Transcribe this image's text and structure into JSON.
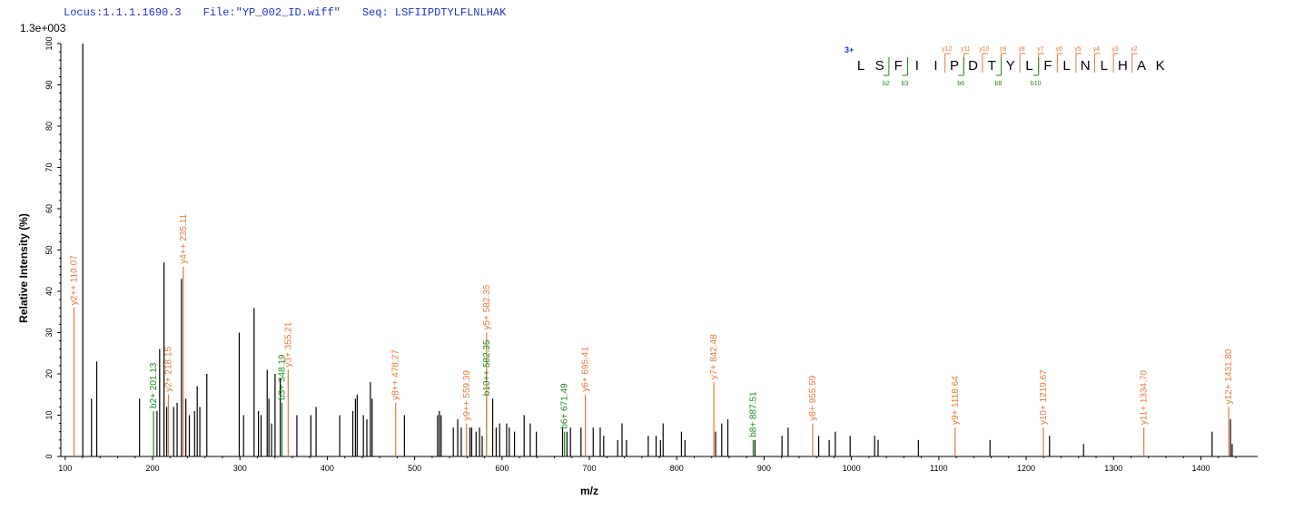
{
  "header": {
    "locus": "Locus:1.1.1.1690.3",
    "file": "File:\"YP_002_ID.wiff\"",
    "seq": "Seq: LSFIIPDTYLFLNLHAK"
  },
  "colors": {
    "y_ion": "#e8783a",
    "b_ion": "#1f8a1f",
    "unlabeled": "#000000",
    "header": "#1a35c8",
    "charge": "#1a35c8"
  },
  "chart_data": {
    "type": "bar",
    "title": "",
    "xlabel": "m/z",
    "ylabel": "Relative Intensity (%)",
    "ymax_label": "1.3e+003",
    "xlim": [
      95,
      1465
    ],
    "ylim": [
      0,
      100
    ],
    "xticks": [
      100,
      200,
      300,
      400,
      500,
      600,
      700,
      800,
      900,
      1000,
      1100,
      1200,
      1300,
      1400
    ],
    "yticks": [
      0,
      10,
      20,
      30,
      40,
      50,
      60,
      70,
      80,
      90,
      100
    ],
    "peaks": [
      {
        "mz": 110.07,
        "i": 36,
        "ion": "y",
        "label": "y2++ 110.07"
      },
      {
        "mz": 120.1,
        "i": 100,
        "ion": "none"
      },
      {
        "mz": 130.1,
        "i": 14,
        "ion": "none"
      },
      {
        "mz": 136.1,
        "i": 23,
        "ion": "none"
      },
      {
        "mz": 185.1,
        "i": 14,
        "ion": "none"
      },
      {
        "mz": 201.13,
        "i": 11,
        "ion": "b",
        "label": "b2+ 201.13"
      },
      {
        "mz": 205.1,
        "i": 11,
        "ion": "none"
      },
      {
        "mz": 208.1,
        "i": 26,
        "ion": "none"
      },
      {
        "mz": 213.1,
        "i": 47,
        "ion": "none"
      },
      {
        "mz": 216.2,
        "i": 12,
        "ion": "none"
      },
      {
        "mz": 218.15,
        "i": 15,
        "ion": "y",
        "label": "y2+ 218.15"
      },
      {
        "mz": 224.1,
        "i": 12,
        "ion": "none"
      },
      {
        "mz": 228.1,
        "i": 13,
        "ion": "none"
      },
      {
        "mz": 233.1,
        "i": 43,
        "ion": "none"
      },
      {
        "mz": 235.11,
        "i": 46,
        "ion": "y",
        "label": "y4++ 235.11"
      },
      {
        "mz": 238.1,
        "i": 14,
        "ion": "none"
      },
      {
        "mz": 242.1,
        "i": 10,
        "ion": "none"
      },
      {
        "mz": 248.1,
        "i": 11,
        "ion": "none"
      },
      {
        "mz": 251.1,
        "i": 17,
        "ion": "none"
      },
      {
        "mz": 254.1,
        "i": 12,
        "ion": "none"
      },
      {
        "mz": 262.1,
        "i": 20,
        "ion": "none"
      },
      {
        "mz": 299.2,
        "i": 30,
        "ion": "none"
      },
      {
        "mz": 304.2,
        "i": 10,
        "ion": "none"
      },
      {
        "mz": 316.2,
        "i": 36,
        "ion": "none"
      },
      {
        "mz": 321.2,
        "i": 11,
        "ion": "none"
      },
      {
        "mz": 324.2,
        "i": 10,
        "ion": "none"
      },
      {
        "mz": 331.2,
        "i": 21,
        "ion": "none"
      },
      {
        "mz": 333.2,
        "i": 14,
        "ion": "none"
      },
      {
        "mz": 336.2,
        "i": 8,
        "ion": "none"
      },
      {
        "mz": 340.2,
        "i": 20,
        "ion": "none"
      },
      {
        "mz": 346.2,
        "i": 19,
        "ion": "none"
      },
      {
        "mz": 348.19,
        "i": 13,
        "ion": "b",
        "label": "b3+ 348.19"
      },
      {
        "mz": 355.21,
        "i": 21,
        "ion": "y",
        "label": "y3+ 355.21"
      },
      {
        "mz": 365.2,
        "i": 10,
        "ion": "none"
      },
      {
        "mz": 381.2,
        "i": 10,
        "ion": "none"
      },
      {
        "mz": 387.2,
        "i": 12,
        "ion": "none"
      },
      {
        "mz": 414.2,
        "i": 10,
        "ion": "none"
      },
      {
        "mz": 429.2,
        "i": 11,
        "ion": "none"
      },
      {
        "mz": 432.2,
        "i": 14,
        "ion": "none"
      },
      {
        "mz": 434.2,
        "i": 15,
        "ion": "none"
      },
      {
        "mz": 441.3,
        "i": 10,
        "ion": "none"
      },
      {
        "mz": 445.3,
        "i": 9,
        "ion": "none"
      },
      {
        "mz": 449.3,
        "i": 18,
        "ion": "none"
      },
      {
        "mz": 451.3,
        "i": 14,
        "ion": "none"
      },
      {
        "mz": 478.27,
        "i": 13,
        "ion": "y",
        "label": "y8++ 478.27"
      },
      {
        "mz": 488.3,
        "i": 10,
        "ion": "none"
      },
      {
        "mz": 526.3,
        "i": 10,
        "ion": "none"
      },
      {
        "mz": 528.3,
        "i": 11,
        "ion": "none"
      },
      {
        "mz": 530.3,
        "i": 10,
        "ion": "none"
      },
      {
        "mz": 544.3,
        "i": 7,
        "ion": "none"
      },
      {
        "mz": 549.3,
        "i": 9,
        "ion": "none"
      },
      {
        "mz": 553.3,
        "i": 7,
        "ion": "none"
      },
      {
        "mz": 559.39,
        "i": 8,
        "ion": "y",
        "label": "y9++ 559.39"
      },
      {
        "mz": 563.3,
        "i": 7,
        "ion": "none"
      },
      {
        "mz": 565.3,
        "i": 7,
        "ion": "none"
      },
      {
        "mz": 570.3,
        "i": 6,
        "ion": "none"
      },
      {
        "mz": 574.3,
        "i": 7,
        "ion": "none"
      },
      {
        "mz": 577.3,
        "i": 5,
        "ion": "none"
      },
      {
        "mz": 582.35,
        "i": 14,
        "ion": "b",
        "label": "b10++ 582.35"
      },
      {
        "mz": 582.35,
        "i": 30,
        "ion": "y",
        "label": "y5+ 582.35"
      },
      {
        "mz": 589.3,
        "i": 14,
        "ion": "none"
      },
      {
        "mz": 593.3,
        "i": 7,
        "ion": "none"
      },
      {
        "mz": 597.3,
        "i": 8,
        "ion": "none"
      },
      {
        "mz": 605.3,
        "i": 8,
        "ion": "none"
      },
      {
        "mz": 608.3,
        "i": 7,
        "ion": "none"
      },
      {
        "mz": 614.3,
        "i": 6,
        "ion": "none"
      },
      {
        "mz": 625.3,
        "i": 10,
        "ion": "none"
      },
      {
        "mz": 632.3,
        "i": 8,
        "ion": "none"
      },
      {
        "mz": 639.3,
        "i": 6,
        "ion": "none"
      },
      {
        "mz": 669.3,
        "i": 7,
        "ion": "none"
      },
      {
        "mz": 671.49,
        "i": 6,
        "ion": "b",
        "label": "b6+ 671.49"
      },
      {
        "mz": 674.3,
        "i": 6,
        "ion": "none"
      },
      {
        "mz": 678.4,
        "i": 7,
        "ion": "none"
      },
      {
        "mz": 690.4,
        "i": 7,
        "ion": "none"
      },
      {
        "mz": 695.41,
        "i": 15,
        "ion": "y",
        "label": "y6+ 695.41"
      },
      {
        "mz": 704.4,
        "i": 7,
        "ion": "none"
      },
      {
        "mz": 712.4,
        "i": 7,
        "ion": "none"
      },
      {
        "mz": 716.4,
        "i": 5,
        "ion": "none"
      },
      {
        "mz": 732.4,
        "i": 4,
        "ion": "none"
      },
      {
        "mz": 737.4,
        "i": 8,
        "ion": "none"
      },
      {
        "mz": 742.4,
        "i": 4,
        "ion": "none"
      },
      {
        "mz": 767.4,
        "i": 5,
        "ion": "none"
      },
      {
        "mz": 776.4,
        "i": 5,
        "ion": "none"
      },
      {
        "mz": 781.4,
        "i": 4,
        "ion": "none"
      },
      {
        "mz": 784.4,
        "i": 8,
        "ion": "none"
      },
      {
        "mz": 805.4,
        "i": 6,
        "ion": "none"
      },
      {
        "mz": 809.4,
        "i": 4,
        "ion": "none"
      },
      {
        "mz": 842.48,
        "i": 18,
        "ion": "y",
        "label": "y7+ 842.48"
      },
      {
        "mz": 844.5,
        "i": 6,
        "ion": "none"
      },
      {
        "mz": 851.5,
        "i": 8,
        "ion": "none"
      },
      {
        "mz": 858.5,
        "i": 9,
        "ion": "none"
      },
      {
        "mz": 887.51,
        "i": 4,
        "ion": "b",
        "label": "b8+ 887.51"
      },
      {
        "mz": 889.5,
        "i": 4,
        "ion": "none"
      },
      {
        "mz": 920.5,
        "i": 5,
        "ion": "none"
      },
      {
        "mz": 927.5,
        "i": 7,
        "ion": "none"
      },
      {
        "mz": 955.59,
        "i": 8,
        "ion": "y",
        "label": "y8+ 955.59"
      },
      {
        "mz": 962.5,
        "i": 5,
        "ion": "none"
      },
      {
        "mz": 974.5,
        "i": 4,
        "ion": "none"
      },
      {
        "mz": 981.5,
        "i": 6,
        "ion": "none"
      },
      {
        "mz": 998.5,
        "i": 5,
        "ion": "none"
      },
      {
        "mz": 1026.5,
        "i": 5,
        "ion": "none"
      },
      {
        "mz": 1030.5,
        "i": 4,
        "ion": "none"
      },
      {
        "mz": 1076.6,
        "i": 4,
        "ion": "none"
      },
      {
        "mz": 1118.64,
        "i": 7,
        "ion": "y",
        "label": "y9+ 1118.64"
      },
      {
        "mz": 1158.6,
        "i": 4,
        "ion": "none"
      },
      {
        "mz": 1219.67,
        "i": 7,
        "ion": "y",
        "label": "y10+ 1219.67"
      },
      {
        "mz": 1226.7,
        "i": 5,
        "ion": "none"
      },
      {
        "mz": 1265.7,
        "i": 3,
        "ion": "none"
      },
      {
        "mz": 1334.7,
        "i": 7,
        "ion": "y",
        "label": "y11+ 1334.70"
      },
      {
        "mz": 1412.8,
        "i": 6,
        "ion": "none"
      },
      {
        "mz": 1431.8,
        "i": 12,
        "ion": "y",
        "label": "y12+ 1431.80"
      },
      {
        "mz": 1433.8,
        "i": 9,
        "ion": "none"
      },
      {
        "mz": 1435.8,
        "i": 3,
        "ion": "none"
      }
    ]
  },
  "sequence": {
    "charge": "3+",
    "residues": [
      "L",
      "S",
      "F",
      "I",
      "I",
      "P",
      "D",
      "T",
      "Y",
      "L",
      "F",
      "L",
      "N",
      "L",
      "H",
      "A",
      "K"
    ],
    "y_ions": [
      {
        "after": 5,
        "label": "y12"
      },
      {
        "after": 6,
        "label": "y11"
      },
      {
        "after": 7,
        "label": "y10"
      },
      {
        "after": 8,
        "label": "y9"
      },
      {
        "after": 9,
        "label": "y8"
      },
      {
        "after": 10,
        "label": "y7"
      },
      {
        "after": 11,
        "label": "y6"
      },
      {
        "after": 12,
        "label": "y5"
      },
      {
        "after": 13,
        "label": "y4"
      },
      {
        "after": 14,
        "label": "y3"
      },
      {
        "after": 15,
        "label": "y2"
      }
    ],
    "b_ions": [
      {
        "after": 2,
        "label": "b2"
      },
      {
        "after": 3,
        "label": "b3"
      },
      {
        "after": 6,
        "label": "b6"
      },
      {
        "after": 8,
        "label": "b8"
      },
      {
        "after": 10,
        "label": "b10"
      }
    ]
  }
}
